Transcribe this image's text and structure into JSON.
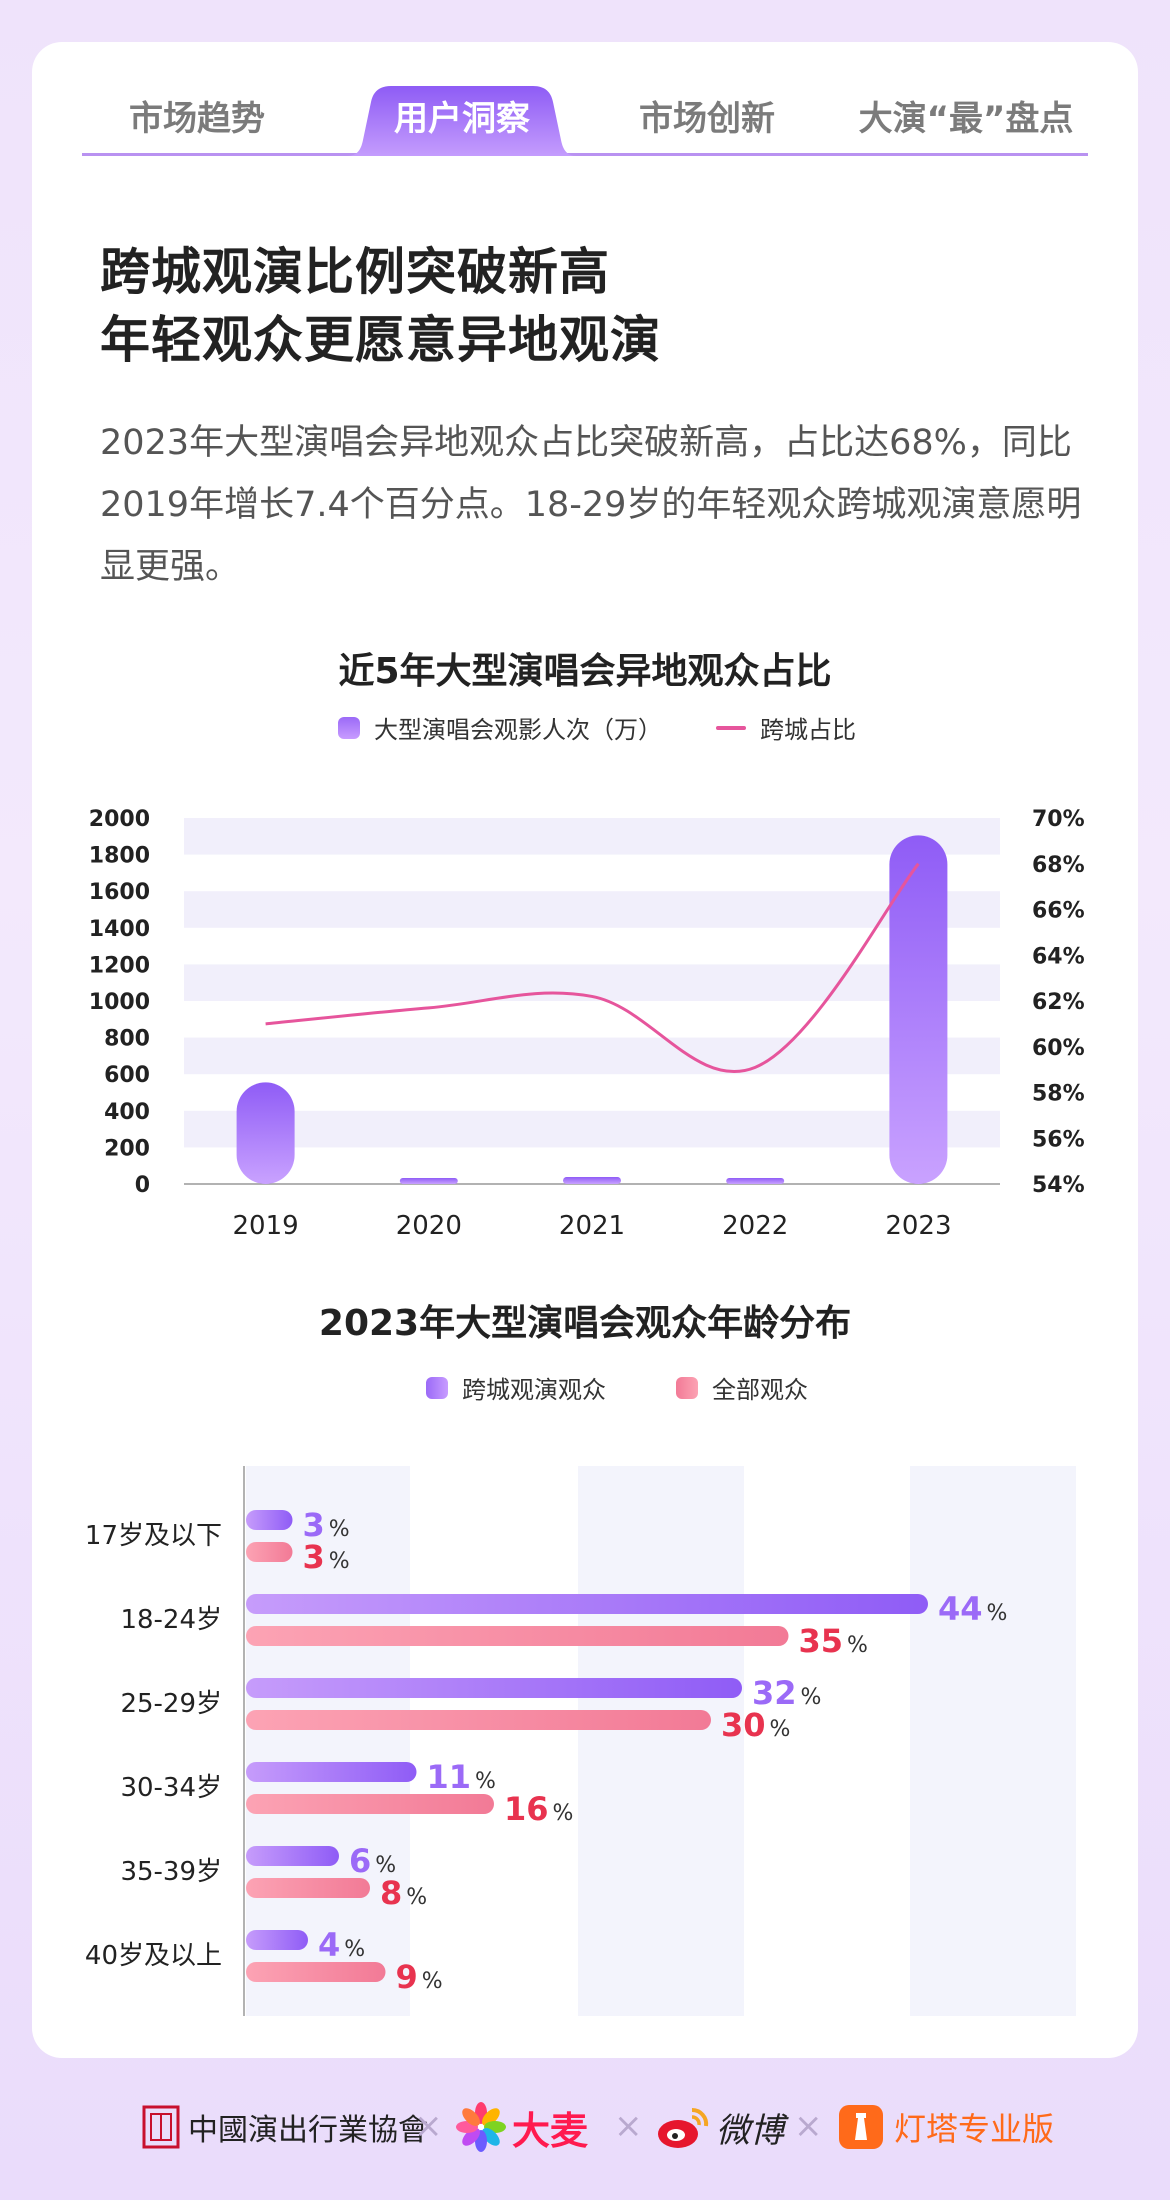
{
  "tabs": [
    {
      "label": "市场趋势",
      "active": false
    },
    {
      "label": "用户洞察",
      "active": true
    },
    {
      "label": "市场创新",
      "active": false
    },
    {
      "label": "大演“最”盘点",
      "active": false
    }
  ],
  "headline": {
    "line1": "跨城观演比例突破新高",
    "line2": "年轻观众更愿意异地观演"
  },
  "description": "2023年大型演唱会异地观众占比突破新高，占比达68%，同比2019年增长7.4个百分点。18-29岁的年轻观众跨城观演意愿明显更强。",
  "colors": {
    "accent": "#9b6af7",
    "line": "#e6559c",
    "pink": "#f27a96",
    "pink_text": "#e8334f",
    "purple_text": "#9b6af7"
  },
  "chart_data": [
    {
      "type": "bar",
      "title": "近5年大型演唱会异地观众占比",
      "categories": [
        "2019",
        "2020",
        "2021",
        "2022",
        "2023"
      ],
      "series": [
        {
          "name": "大型演唱会观影人次（万）",
          "type": "bar",
          "axis": "left",
          "values": [
            555,
            25,
            38,
            25,
            1905
          ]
        },
        {
          "name": "跨城占比",
          "type": "line",
          "axis": "right",
          "values": [
            61.0,
            61.7,
            62.2,
            59.1,
            68.0
          ]
        }
      ],
      "ylim": [
        0,
        2000
      ],
      "y_ticks": [
        "0",
        "200",
        "400",
        "600",
        "800",
        "1000",
        "1200",
        "1400",
        "1600",
        "1800",
        "2000"
      ],
      "y2lim": [
        54,
        70
      ],
      "y2_ticks": [
        "54%",
        "56%",
        "58%",
        "60%",
        "62%",
        "64%",
        "66%",
        "68%",
        "70%"
      ],
      "legend": "top-center"
    },
    {
      "type": "bar",
      "orientation": "horizontal",
      "title": "2023年大型演唱会观众年龄分布",
      "categories": [
        "17岁及以下",
        "18-24岁",
        "25-29岁",
        "30-34岁",
        "35-39岁",
        "40岁及以上"
      ],
      "series": [
        {
          "name": "跨城观演观众",
          "values": [
            3,
            44,
            32,
            11,
            6,
            4
          ]
        },
        {
          "name": "全部观众",
          "values": [
            3,
            35,
            30,
            16,
            8,
            9
          ]
        }
      ],
      "unit": "%",
      "xlim": [
        0,
        50
      ],
      "legend": "top-center"
    }
  ],
  "footer": {
    "partners": [
      "中國演出行業協會",
      "大麦",
      "微博",
      "灯塔专业版"
    ],
    "separator": "×"
  }
}
